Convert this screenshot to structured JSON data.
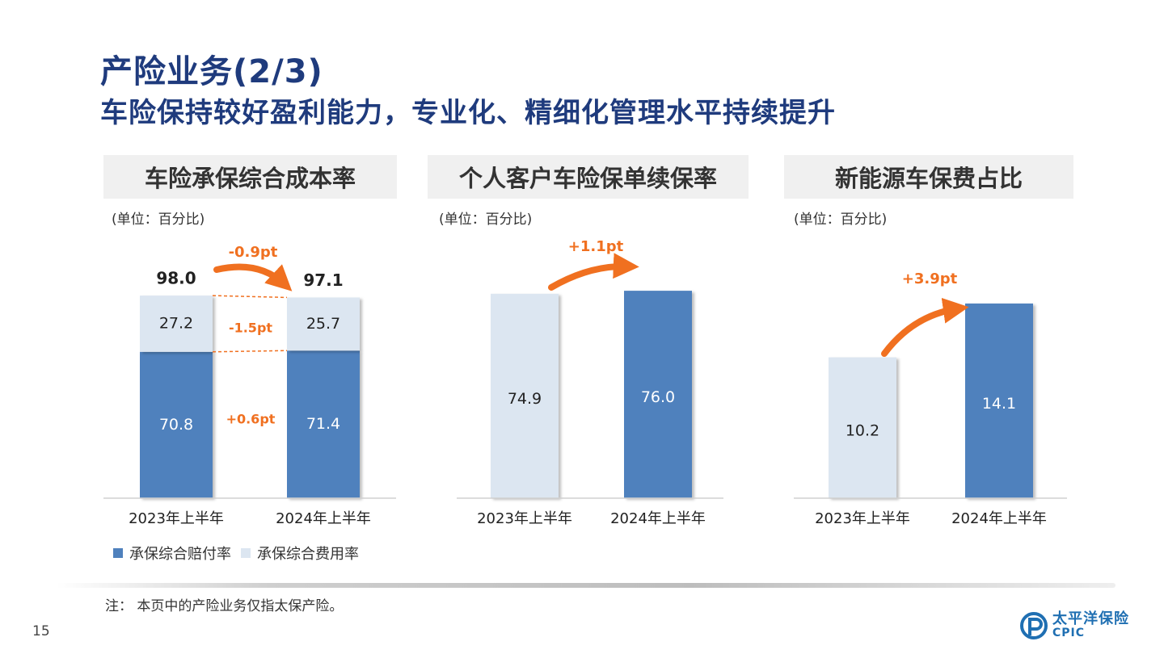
{
  "page": {
    "title": "产险业务(2/3)",
    "subtitle": "车险保持较好盈利能力，专业化、精细化管理水平持续提升",
    "note": "注：  本页中的产险业务仅指太保产险。",
    "page_number": "15",
    "logo": {
      "cn": "太平洋保险",
      "en": "CPIC"
    }
  },
  "colors": {
    "dark": "#4f81bd",
    "light": "#dce6f1",
    "accent": "#f07020",
    "title": "#1f3b7d"
  },
  "legend": [
    {
      "label": "承保综合赔付率",
      "color": "#4f81bd"
    },
    {
      "label": "承保综合费用率",
      "color": "#dce6f1"
    }
  ],
  "panels": [
    {
      "header": "车险承保综合成本率",
      "unit": "(单位：百分比)"
    },
    {
      "header": "个人客户车险保单续保率",
      "unit": "(单位：百分比)"
    },
    {
      "header": "新能源车保费占比",
      "unit": "(单位：百分比)"
    }
  ],
  "chart_data": [
    {
      "type": "bar",
      "stacked": true,
      "title": "车险承保综合成本率",
      "categories": [
        "2023年上半年",
        "2024年上半年"
      ],
      "series": [
        {
          "name": "承保综合赔付率",
          "values": [
            70.8,
            71.4
          ]
        },
        {
          "name": "承保综合费用率",
          "values": [
            27.2,
            25.7
          ]
        }
      ],
      "totals": [
        "98.0",
        "97.1"
      ],
      "value_labels": [
        [
          "70.8",
          "71.4"
        ],
        [
          "27.2",
          "25.7"
        ]
      ],
      "annotations": {
        "total": "-0.9pt",
        "expense": "-1.5pt",
        "loss": "+0.6pt"
      },
      "ylim": [
        0,
        100
      ]
    },
    {
      "type": "bar",
      "title": "个人客户车险保单续保率",
      "categories": [
        "2023年上半年",
        "2024年上半年"
      ],
      "values": [
        74.9,
        76.0
      ],
      "value_labels": [
        "74.9",
        "76.0"
      ],
      "annotation": "+1.1pt",
      "ylim": [
        0,
        80
      ]
    },
    {
      "type": "bar",
      "title": "新能源车保费占比",
      "categories": [
        "2023年上半年",
        "2024年上半年"
      ],
      "values": [
        10.2,
        14.1
      ],
      "value_labels": [
        "10.2",
        "14.1"
      ],
      "annotation": "+3.9pt",
      "ylim": [
        0,
        15
      ]
    }
  ]
}
